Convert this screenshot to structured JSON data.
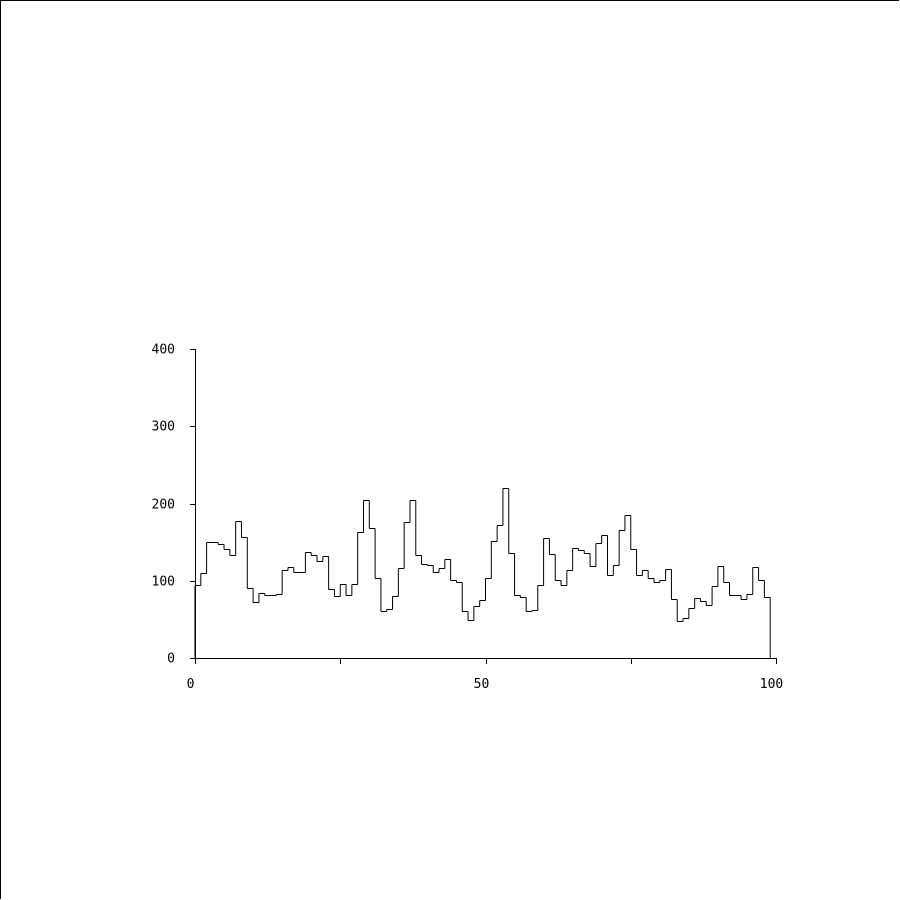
{
  "chart_data": {
    "type": "histogram",
    "title": "",
    "xlabel": "",
    "ylabel": "",
    "xlim": [
      0,
      100
    ],
    "ylim": [
      0,
      400
    ],
    "bin_width": 1,
    "x_ticks": [
      0,
      25,
      50,
      75,
      100
    ],
    "x_tick_labels": [
      "0",
      "",
      "50",
      "",
      "100"
    ],
    "y_ticks": [
      0,
      100,
      200,
      300,
      400
    ],
    "y_tick_labels": [
      "0",
      "100",
      "200",
      "300",
      "400"
    ],
    "grid": false,
    "legend": "none",
    "line_color": "#000000",
    "values": [
      94,
      110,
      150,
      150,
      147,
      141,
      133,
      177,
      156,
      91,
      73,
      84,
      82,
      81,
      83,
      114,
      118,
      111,
      111,
      137,
      133,
      125,
      132,
      89,
      80,
      96,
      81,
      96,
      163,
      204,
      168,
      103,
      61,
      63,
      80,
      116,
      176,
      204,
      133,
      122,
      121,
      111,
      116,
      128,
      101,
      98,
      61,
      49,
      67,
      75,
      104,
      151,
      172,
      220,
      136,
      81,
      79,
      61,
      62,
      94,
      155,
      135,
      101,
      94,
      114,
      142,
      140,
      136,
      119,
      149,
      159,
      107,
      120,
      166,
      185,
      141,
      108,
      114,
      104,
      99,
      101,
      115,
      76,
      48,
      52,
      65,
      78,
      74,
      68,
      93,
      119,
      98,
      81,
      81,
      77,
      83,
      118,
      101,
      79,
      0
    ]
  }
}
